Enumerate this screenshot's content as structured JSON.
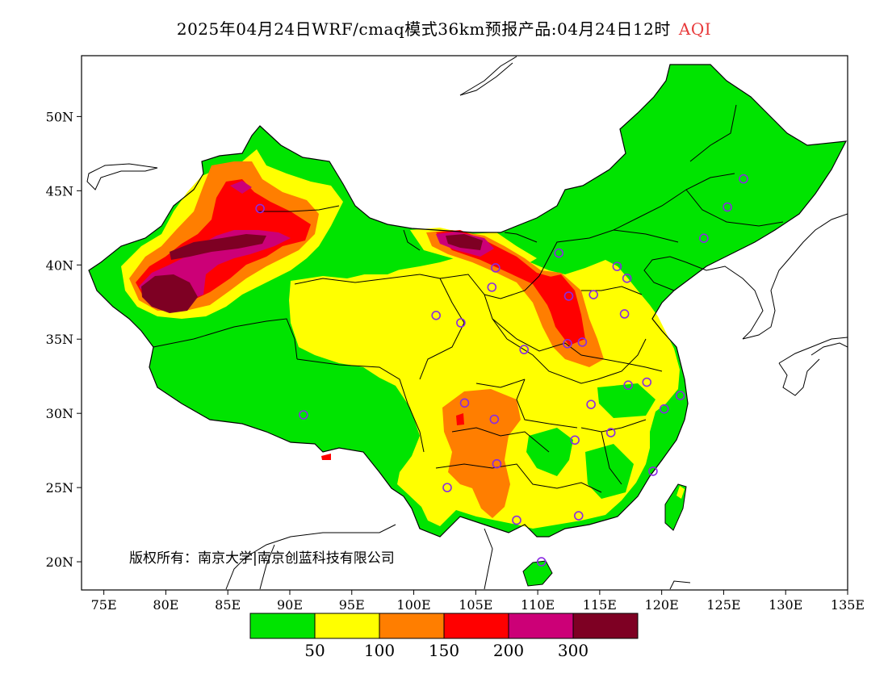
{
  "title": {
    "main": "2025年04月24日WRF/cmaq模式36km预报产品:04月24日12时",
    "variable": "AQI"
  },
  "axes": {
    "lon_ticks": [
      "75E",
      "80E",
      "85E",
      "90E",
      "95E",
      "100E",
      "105E",
      "110E",
      "115E",
      "120E",
      "125E",
      "130E",
      "135E"
    ],
    "lat_ticks": [
      "50N",
      "45N",
      "40N",
      "35N",
      "30N",
      "25N",
      "20N"
    ],
    "lon_range": [
      73.2,
      135
    ],
    "lat_range": [
      18.1,
      54.1
    ]
  },
  "copyright": "版权所有：南京大学|南京创蓝科技有限公司",
  "legend": {
    "colors": [
      "#00e400",
      "#ffff00",
      "#ff7e00",
      "#ff0000",
      "#cc0077",
      "#7e0023"
    ],
    "labels": [
      "50",
      "100",
      "150",
      "200",
      "300"
    ]
  },
  "stations": [
    {
      "lon": 87.6,
      "lat": 43.8
    },
    {
      "lon": 91.1,
      "lat": 29.9
    },
    {
      "lon": 101.8,
      "lat": 36.6
    },
    {
      "lon": 103.8,
      "lat": 36.1
    },
    {
      "lon": 106.3,
      "lat": 38.5
    },
    {
      "lon": 106.6,
      "lat": 39.8
    },
    {
      "lon": 111.7,
      "lat": 40.8
    },
    {
      "lon": 112.5,
      "lat": 37.9
    },
    {
      "lon": 114.5,
      "lat": 38.0
    },
    {
      "lon": 116.4,
      "lat": 39.9
    },
    {
      "lon": 117.2,
      "lat": 39.1
    },
    {
      "lon": 117.0,
      "lat": 36.7
    },
    {
      "lon": 113.6,
      "lat": 34.8
    },
    {
      "lon": 112.4,
      "lat": 34.7
    },
    {
      "lon": 108.9,
      "lat": 34.3
    },
    {
      "lon": 104.1,
      "lat": 30.7
    },
    {
      "lon": 106.5,
      "lat": 29.6
    },
    {
      "lon": 106.7,
      "lat": 26.6
    },
    {
      "lon": 102.7,
      "lat": 25.0
    },
    {
      "lon": 108.3,
      "lat": 22.8
    },
    {
      "lon": 113.3,
      "lat": 23.1
    },
    {
      "lon": 110.3,
      "lat": 20.0
    },
    {
      "lon": 113.0,
      "lat": 28.2
    },
    {
      "lon": 115.9,
      "lat": 28.7
    },
    {
      "lon": 114.3,
      "lat": 30.6
    },
    {
      "lon": 117.3,
      "lat": 31.9
    },
    {
      "lon": 118.8,
      "lat": 32.1
    },
    {
      "lon": 120.2,
      "lat": 30.3
    },
    {
      "lon": 121.5,
      "lat": 31.2
    },
    {
      "lon": 119.3,
      "lat": 26.1
    },
    {
      "lon": 123.4,
      "lat": 41.8
    },
    {
      "lon": 125.3,
      "lat": 43.9
    },
    {
      "lon": 126.6,
      "lat": 45.8
    }
  ]
}
